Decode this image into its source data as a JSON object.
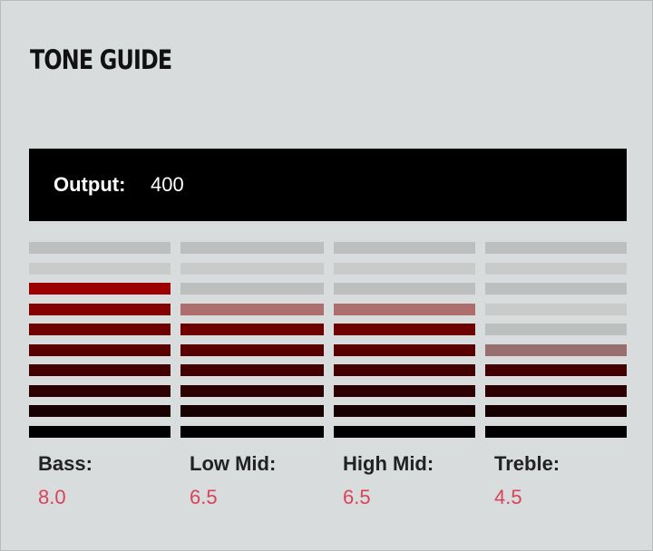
{
  "header": {
    "title": "TONE GUIDE"
  },
  "output": {
    "label": "Output:",
    "value": 400
  },
  "meter": {
    "ylim": [
      0,
      10
    ]
  },
  "bands": [
    {
      "name": "Bass:",
      "value": 8,
      "value_label": "8.0"
    },
    {
      "name": "Low Mid:",
      "value": 6.5,
      "value_label": "6.5"
    },
    {
      "name": "High Mid:",
      "value": 6.5,
      "value_label": "6.5"
    },
    {
      "name": "Treble:",
      "value": 4.5,
      "value_label": "4.5"
    }
  ]
}
